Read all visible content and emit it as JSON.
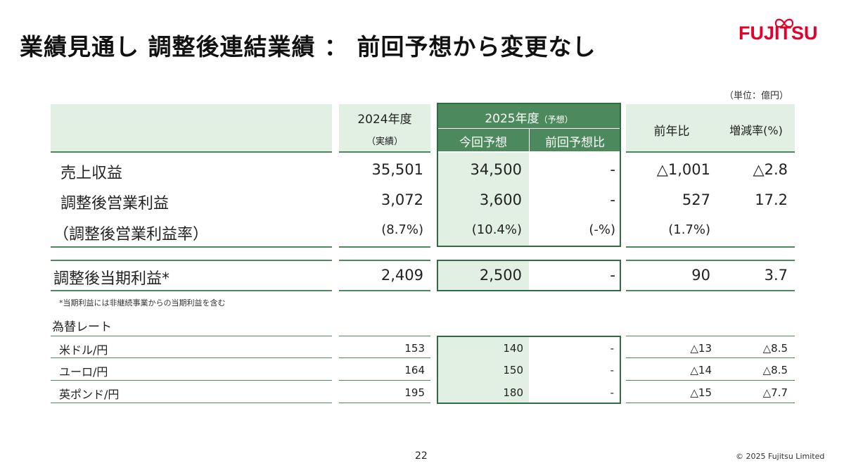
{
  "title": "業績見通し 調整後連結業績 ： 前回予想から変更なし",
  "logo_text": "FUJITSU",
  "unit": "（単位：億円）",
  "header": {
    "fy2024": "2024年度",
    "fy2024_sub": "（実績）",
    "fy2025": "2025年度",
    "fy2025_sub": "（予想）",
    "current_forecast": "今回予想",
    "vs_previous": "前回予想比",
    "yoy": "前年比",
    "change_rate": "増減率(%)"
  },
  "rows": [
    {
      "label": "売上収益",
      "fy2024": "35,501",
      "current": "34,500",
      "vs_prev": "-",
      "yoy": "△1,001",
      "rate": "△2.8"
    },
    {
      "label": "調整後営業利益",
      "fy2024": "3,072",
      "current": "3,600",
      "vs_prev": "-",
      "yoy": "527",
      "rate": "17.2"
    },
    {
      "label": "（調整後営業利益率）",
      "fy2024": "(8.7%)",
      "current": "(10.4%)",
      "vs_prev": "(-%)",
      "yoy": "(1.7%)",
      "rate": ""
    }
  ],
  "net_row": {
    "label": "調整後当期利益*",
    "fy2024": "2,409",
    "current": "2,500",
    "vs_prev": "-",
    "yoy": "90",
    "rate": "3.7"
  },
  "note": "*当期利益には非継続事業からの当期利益を含む",
  "fx_title": "為替レート",
  "fx_rows": [
    {
      "label": "米ドル/円",
      "fy2024": "153",
      "current": "140",
      "vs_prev": "-",
      "yoy": "△13",
      "rate": "△8.5"
    },
    {
      "label": "ユーロ/円",
      "fy2024": "164",
      "current": "150",
      "vs_prev": "-",
      "yoy": "△14",
      "rate": "△8.5"
    },
    {
      "label": "英ポンド/円",
      "fy2024": "195",
      "current": "180",
      "vs_prev": "-",
      "yoy": "△15",
      "rate": "△7.7"
    }
  ],
  "page_number": "22",
  "copyright": "© 2025 Fujitsu Limited",
  "colors": {
    "accent_green": "#4c8a5e",
    "light_green": "#e2f0e4",
    "brand_red": "#e4002b"
  }
}
